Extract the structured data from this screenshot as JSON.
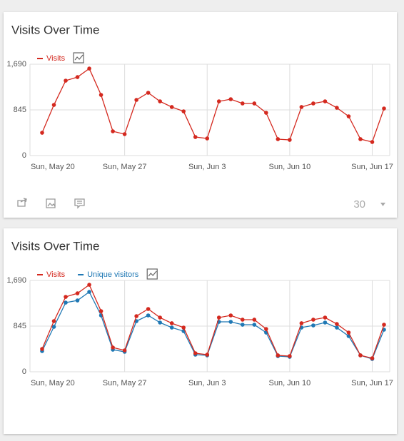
{
  "widgets": [
    {
      "chart_data": {
        "type": "line",
        "title": "Visits Over Time",
        "categories": [
          "Sun, May 20",
          null,
          null,
          null,
          null,
          null,
          null,
          "Sun, May 27",
          null,
          null,
          null,
          null,
          null,
          null,
          "Sun, Jun 3",
          null,
          null,
          null,
          null,
          null,
          null,
          "Sun, Jun 10",
          null,
          null,
          null,
          null,
          null,
          null,
          "Sun, Jun 17",
          null
        ],
        "series": [
          {
            "name": "Visits",
            "color": "#d4291f",
            "values": [
              422,
              937,
              1386,
              1452,
              1610,
              1122,
              449,
              396,
              1030,
              1162,
              1003,
              898,
              818,
              343,
              317,
              1003,
              1043,
              964,
              964,
              792,
              304,
              290,
              898,
              964,
              1003,
              884,
              726,
              304,
              251,
              871
            ]
          }
        ],
        "ylim": [
          0,
          1690
        ],
        "yticks": [
          0,
          845,
          {
            "value": 1690,
            "label": "1,690"
          }
        ],
        "grid": true
      },
      "footer": {
        "limit": "30"
      }
    },
    {
      "chart_data": {
        "type": "line",
        "title": "Visits Over Time",
        "categories": [
          "Sun, May 20",
          null,
          null,
          null,
          null,
          null,
          null,
          "Sun, May 27",
          null,
          null,
          null,
          null,
          null,
          null,
          "Sun, Jun 3",
          null,
          null,
          null,
          null,
          null,
          null,
          "Sun, Jun 10",
          null,
          null,
          null,
          null,
          null,
          null,
          "Sun, Jun 17",
          null
        ],
        "series": [
          {
            "name": "Visits",
            "color": "#d4291f",
            "values": [
              422,
              937,
              1386,
              1452,
              1610,
              1122,
              449,
              396,
              1030,
              1162,
              1003,
              898,
              818,
              343,
              317,
              1003,
              1043,
              964,
              964,
              792,
              304,
              290,
              898,
              964,
              1003,
              884,
              726,
              304,
              251,
              871
            ]
          },
          {
            "name": "Unique visitors",
            "color": "#1f78b4",
            "values": [
              383,
              832,
              1280,
              1320,
              1478,
              1043,
              409,
              370,
              937,
              1043,
              911,
              818,
              752,
              317,
              304,
              924,
              924,
              871,
              871,
              726,
              290,
              277,
              818,
              858,
              911,
              818,
              660,
              304,
              238,
              779
            ]
          }
        ],
        "ylim": [
          0,
          1690
        ],
        "yticks": [
          0,
          845,
          {
            "value": 1690,
            "label": "1,690"
          }
        ],
        "grid": true
      }
    }
  ]
}
